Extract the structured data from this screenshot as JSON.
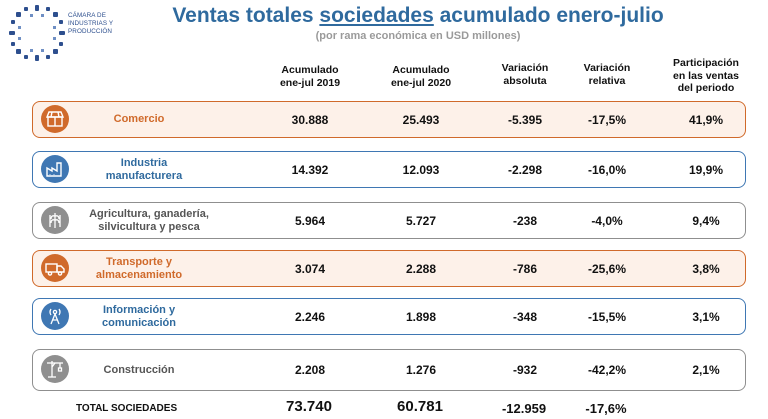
{
  "logo": {
    "lines": [
      "CÁMARA DE",
      "INDUSTRIAS Y",
      "PRODUCCIÓN"
    ],
    "color": "#2d4f8e"
  },
  "title": {
    "before": "Ventas totales ",
    "underlined": "sociedades",
    "after": " acumulado enero-julio"
  },
  "subtitle": "(por rama económica en USD millones)",
  "headers": {
    "col1": [
      "Acumulado",
      "ene-jul 2019"
    ],
    "col2": [
      "Acumulado",
      "ene-jul 2020"
    ],
    "col3": [
      "Variación",
      "absoluta"
    ],
    "col4": [
      "Variación",
      "relativa"
    ],
    "col5": [
      "Participación",
      "en las ventas",
      "del periodo"
    ]
  },
  "rows": [
    {
      "label_lines": [
        "Comercio"
      ],
      "icon": "store-icon",
      "style": "orange",
      "v2019": "30.888",
      "v2020": "25.493",
      "abs": "-5.395",
      "rel": "-17,5%",
      "share": "41,9%"
    },
    {
      "label_lines": [
        "Industria",
        "manufacturera"
      ],
      "icon": "factory-icon",
      "style": "blue",
      "v2019": "14.392",
      "v2020": "12.093",
      "abs": "-2.298",
      "rel": "-16,0%",
      "share": "19,9%"
    },
    {
      "label_lines": [
        "Agricultura, ganadería,",
        "silvicultura y pesca"
      ],
      "icon": "wheat-icon",
      "style": "gray",
      "v2019": "5.964",
      "v2020": "5.727",
      "abs": "-238",
      "rel": "-4,0%",
      "share": "9,4%"
    },
    {
      "label_lines": [
        "Transporte y",
        "almacenamiento"
      ],
      "icon": "truck-icon",
      "style": "orange",
      "v2019": "3.074",
      "v2020": "2.288",
      "abs": "-786",
      "rel": "-25,6%",
      "share": "3,8%"
    },
    {
      "label_lines": [
        "Información y",
        "comunicación"
      ],
      "icon": "antenna-icon",
      "style": "blue",
      "v2019": "2.246",
      "v2020": "1.898",
      "abs": "-348",
      "rel": "-15,5%",
      "share": "3,1%"
    },
    {
      "label_lines": [
        "Construcción"
      ],
      "icon": "crane-icon",
      "style": "gray",
      "v2019": "2.208",
      "v2020": "1.276",
      "abs": "-932",
      "rel": "-42,2%",
      "share": "2,1%"
    }
  ],
  "total": {
    "label": "TOTAL SOCIEDADES",
    "v2019": "73.740",
    "v2020": "60.781",
    "abs": "-12.959",
    "rel": "-17,6%"
  },
  "colors": {
    "orange": "#d06a2b",
    "blue": "#3f77b3",
    "gray": "#8f8f8f",
    "title": "#2f6a9e"
  }
}
